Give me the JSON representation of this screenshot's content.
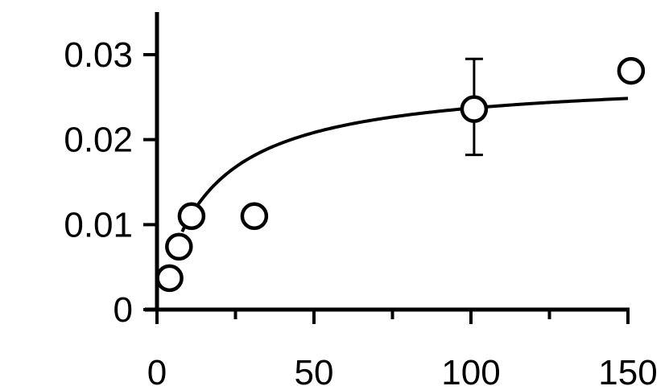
{
  "chart_data": {
    "type": "scatter",
    "title": "",
    "xlabel": "",
    "ylabel": "",
    "xlim": [
      0,
      150
    ],
    "ylim": [
      0,
      0.033
    ],
    "x_ticks": [
      0,
      50,
      100,
      150
    ],
    "x_tick_labels": [
      "0",
      "50",
      "100",
      "150"
    ],
    "x_minor_ticks": [
      25,
      75,
      125
    ],
    "y_ticks": [
      0,
      0.01,
      0.02,
      0.03
    ],
    "y_tick_labels": [
      "0",
      "0.01",
      "0.02",
      "0.03"
    ],
    "grid": false,
    "series": [
      {
        "marker": "open-circle",
        "points": [
          {
            "x": 4,
            "y": 0.0037
          },
          {
            "x": 7,
            "y": 0.0074
          },
          {
            "x": 11,
            "y": 0.011
          },
          {
            "x": 31,
            "y": 0.011
          },
          {
            "x": 101,
            "y": 0.0236,
            "err_low": 0.0182,
            "err_high": 0.0295
          },
          {
            "x": 151,
            "y": 0.0281
          }
        ]
      }
    ],
    "fit_curve": {
      "model": "hyperbolic",
      "vmax": 0.0275,
      "k": 16
    },
    "colors": {
      "line": "#000000",
      "marker_fill": "#ffffff",
      "background": "#ffffff"
    }
  }
}
